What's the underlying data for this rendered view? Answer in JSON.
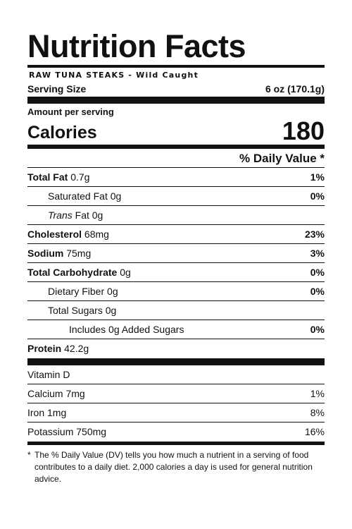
{
  "label": {
    "title": "Nutrition Facts",
    "product": "RAW TUNA STEAKS - Wild Caught",
    "serving_size_label": "Serving Size",
    "serving_size_value": "6 oz (170.1g)",
    "amount_per_serving": "Amount per serving",
    "calories_label": "Calories",
    "calories_value": "180",
    "daily_value_header": "% Daily Value *",
    "nutrients": [
      {
        "name": "Total Fat",
        "amount": "0.7g",
        "dv": "1%"
      },
      {
        "name": "Saturated Fat",
        "amount": "0g",
        "dv": "0%"
      },
      {
        "name_italic": "Trans",
        "name": "Fat",
        "amount": "0g",
        "dv": ""
      },
      {
        "name": "Cholesterol",
        "amount": "68mg",
        "dv": "23%"
      },
      {
        "name": "Sodium",
        "amount": "75mg",
        "dv": "3%"
      },
      {
        "name": "Total Carbohydrate",
        "amount": "0g",
        "dv": "0%"
      },
      {
        "name": "Dietary Fiber",
        "amount": "0g",
        "dv": "0%"
      },
      {
        "name": "Total Sugars",
        "amount": "0g",
        "dv": ""
      },
      {
        "name": "Includes 0g Added Sugars",
        "amount": "",
        "dv": "0%"
      },
      {
        "name": "Protein",
        "amount": "42.2g",
        "dv": ""
      }
    ],
    "vitamins": [
      {
        "text": "Vitamin D",
        "dv": ""
      },
      {
        "text": "Calcium 7mg",
        "dv": "1%"
      },
      {
        "text": "Iron 1mg",
        "dv": "8%"
      },
      {
        "text": "Potassium 750mg",
        "dv": "16%"
      }
    ],
    "footnote_star": "*",
    "footnote": "The % Daily Value (DV) tells you how much a nutrient in a serving of food contributes to a daily diet. 2,000 calories a day is used for general nutrition advice."
  }
}
